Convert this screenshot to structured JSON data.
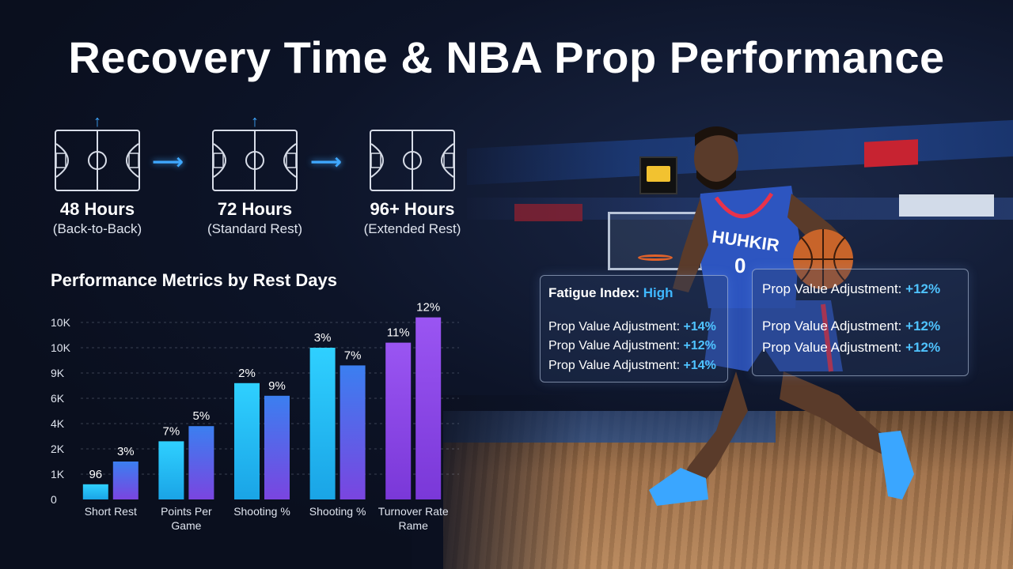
{
  "title": "Recovery Time & NBA Prop Performance",
  "rest_stages": [
    {
      "hours": "48 Hours",
      "label": "(Back-to-Back)"
    },
    {
      "hours": "72 Hours",
      "label": "(Standard Rest)"
    },
    {
      "hours": "96+ Hours",
      "label": "(Extended Rest)"
    }
  ],
  "icons": {
    "court": "basketball-court-icon",
    "up_arrow": "up-arrow-icon",
    "flow_arrow": "right-arrow-icon"
  },
  "chart_data": {
    "type": "bar",
    "title": "Performance Metrics by Rest Days",
    "categories": [
      "Short Rest",
      "Points Per Game",
      "Shooting %",
      "Shooting %",
      "Turnover Rate Rame"
    ],
    "y_tick_labels": [
      "0",
      "1K",
      "2K",
      "4K",
      "6K",
      "9K",
      "10K",
      "10K"
    ],
    "ylim": [
      0,
      7
    ],
    "grid": true,
    "series": [
      {
        "values": [
          0.6,
          2.3,
          4.6,
          6.0,
          6.2
        ],
        "labels": [
          "96",
          "7%",
          "2%",
          "3%",
          "11%"
        ],
        "color_top": "#2fd0ff",
        "color_bottom": "#1aa4e6"
      },
      {
        "values": [
          1.5,
          2.9,
          4.1,
          5.3,
          7.2
        ],
        "labels": [
          "3%",
          "5%",
          "9%",
          "7%",
          "12%"
        ],
        "color_top": "#3b7ff0",
        "color_bottom": "#7a45e0"
      }
    ],
    "purple_group_index": 4,
    "purple_color": "#8a45e8"
  },
  "fatigue_card": {
    "label": "Fatigue Index:",
    "value": "High",
    "rows": [
      {
        "label": "Prop Value Adjustment:",
        "value": "+14%"
      },
      {
        "label": "Prop Value Adjustment:",
        "value": "+12%"
      },
      {
        "label": "Prop Value Adjustment:",
        "value": "+14%"
      }
    ]
  },
  "prop_card": {
    "rows": [
      {
        "label": "Prop Value Adjustment:",
        "value": "+12%"
      },
      {
        "label": "Prop Value Adjustment:",
        "value": "+12%"
      },
      {
        "label": "Prop Value Adjustment:",
        "value": "+12%"
      }
    ]
  },
  "colors": {
    "accent": "#3fa8ff",
    "background": "#0b1020"
  }
}
